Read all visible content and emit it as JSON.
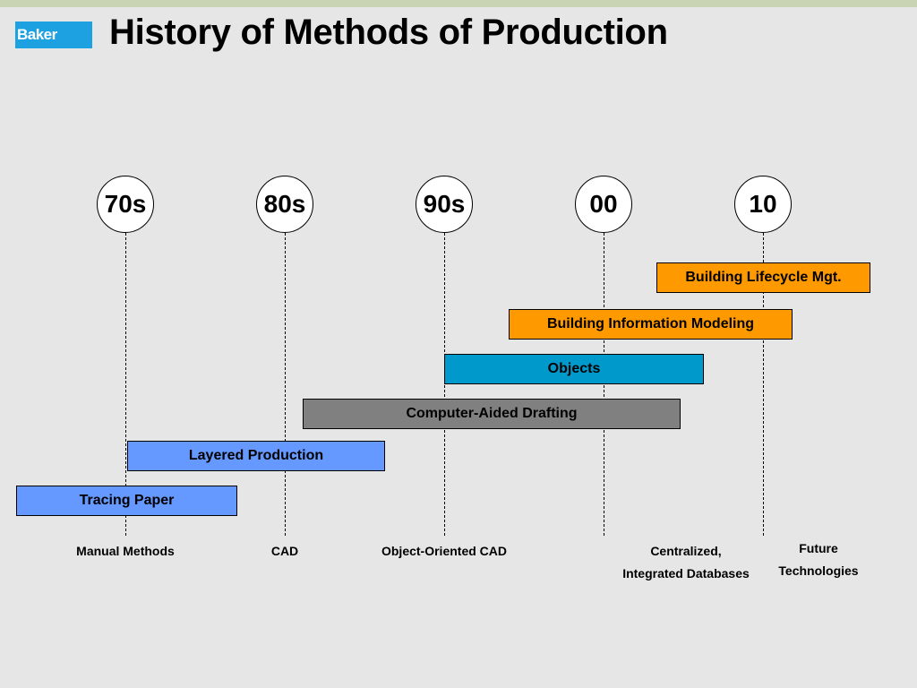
{
  "header": {
    "logo_text": "Baker",
    "title": "History of Methods of Production"
  },
  "timeline": {
    "decades": [
      "70s",
      "80s",
      "90s",
      "00",
      "10"
    ],
    "bars": [
      {
        "label": "Building Lifecycle Mgt.",
        "color": "#ff9900"
      },
      {
        "label": "Building Information Modeling",
        "color": "#ff9900"
      },
      {
        "label": "Objects",
        "color": "#0099cc"
      },
      {
        "label": "Computer-Aided Drafting",
        "color": "#808080"
      },
      {
        "label": "Layered Production",
        "color": "#6699ff"
      },
      {
        "label": "Tracing Paper",
        "color": "#6699ff"
      }
    ],
    "eras": [
      {
        "line1": "Manual Methods"
      },
      {
        "line1": "CAD"
      },
      {
        "line1": "Object-Oriented CAD"
      },
      {
        "line1": "Centralized,",
        "line2": "Integrated Databases"
      },
      {
        "line1": "Future",
        "line2": "Technologies"
      }
    ]
  },
  "colors": {
    "background": "#e6e6e6",
    "top_stripe": "#c8d4b3",
    "logo_blue": "#1ea1e0"
  }
}
